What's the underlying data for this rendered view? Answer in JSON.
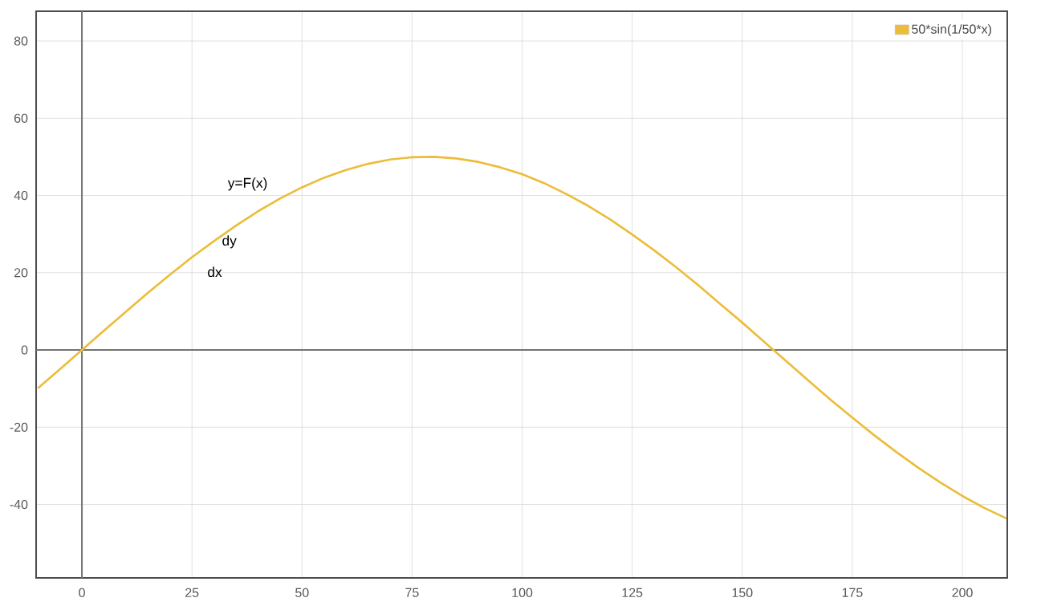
{
  "chart_data": {
    "type": "line",
    "x": [
      -10,
      -5,
      0,
      5,
      10,
      15,
      20,
      25,
      30,
      35,
      40,
      45,
      50,
      55,
      60,
      65,
      70,
      75,
      80,
      85,
      90,
      95,
      100,
      105,
      110,
      115,
      120,
      125,
      130,
      135,
      140,
      145,
      150,
      155,
      160,
      165,
      170,
      175,
      180,
      185,
      190,
      195,
      200,
      205,
      210
    ],
    "series": [
      {
        "name": "50*sin(1/50*x)",
        "color": "#ecbd3b",
        "values": [
          -9.9,
          -5.0,
          0,
          5.0,
          9.9,
          14.8,
          19.5,
          24.0,
          28.2,
          32.2,
          35.9,
          39.2,
          42.1,
          44.6,
          46.6,
          48.2,
          49.3,
          49.9,
          50.0,
          49.6,
          48.7,
          47.3,
          45.5,
          43.2,
          40.4,
          37.3,
          33.8,
          29.9,
          25.8,
          21.4,
          16.8,
          11.9,
          7.1,
          2.1,
          -2.9,
          -7.9,
          -12.8,
          -17.5,
          -22.1,
          -26.4,
          -30.5,
          -34.3,
          -37.8,
          -40.9,
          -43.6
        ]
      }
    ],
    "xlim": [
      -10.4,
      210.2
    ],
    "ylim": [
      -59,
      87.7
    ],
    "xticks": [
      0,
      25,
      50,
      75,
      100,
      125,
      150,
      175,
      200
    ],
    "yticks": [
      -40,
      -20,
      0,
      20,
      40,
      60,
      80
    ],
    "grid": true,
    "legend": "top right",
    "marker": "none",
    "line_style": "solid",
    "annotations": [
      "y=F(x)",
      "dy",
      "dx"
    ]
  }
}
